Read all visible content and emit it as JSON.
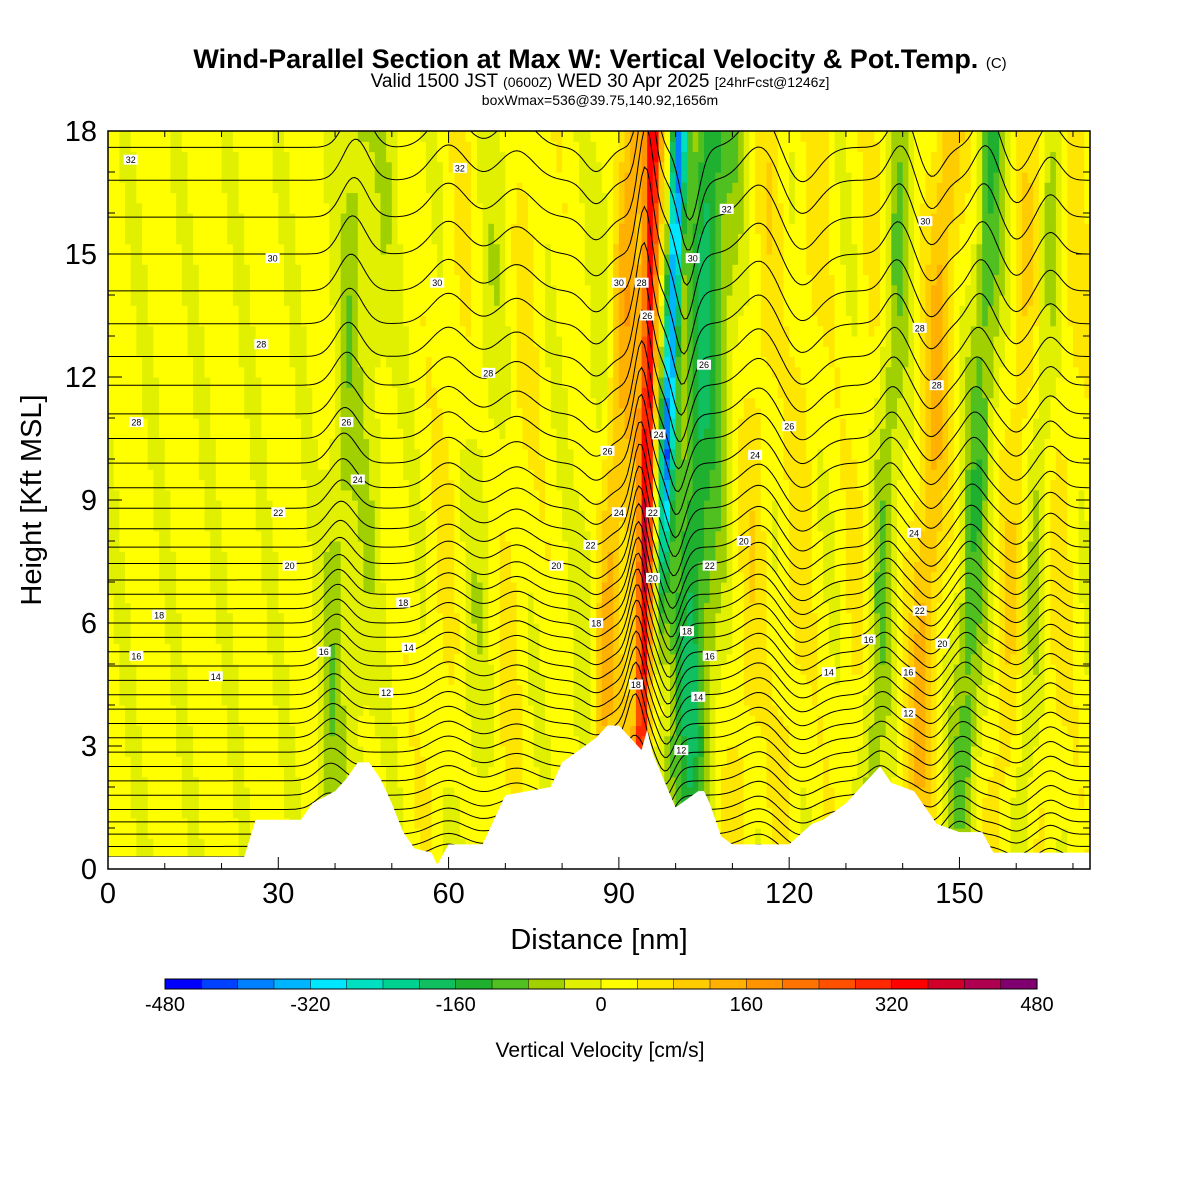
{
  "title": {
    "main": "Wind-Parallel Section at Max W: Vertical Velocity & Pot.Temp.",
    "copyright": "(C)",
    "valid_prefix": "Valid 1500 JST",
    "valid_utc": "(0600Z)",
    "valid_date": "WED 30 Apr 2025",
    "forecast": "[24hrFcst@1246z]",
    "box_info": "boxWmax=536@39.75,140.92,1656m"
  },
  "chart_data": {
    "type": "heatmap",
    "xlabel": "Distance [nm]",
    "ylabel": "Height [Kft MSL]",
    "xlim": [
      0,
      173
    ],
    "ylim": [
      0,
      18
    ],
    "x_ticks": [
      0,
      30,
      60,
      90,
      120,
      150
    ],
    "y_ticks": [
      0,
      3,
      6,
      9,
      12,
      15,
      18
    ],
    "colorbar": {
      "label": "Vertical Velocity [cm/s]",
      "bounds": [
        -480,
        480
      ],
      "step": 40,
      "tick_labels": [
        "-480",
        "-320",
        "-160",
        "0",
        "160",
        "320",
        "480"
      ],
      "tick_values": [
        -480,
        -320,
        -160,
        0,
        160,
        320,
        480
      ],
      "colors": [
        "#0000ff",
        "#0040ff",
        "#0080ff",
        "#00b4ff",
        "#00e6ff",
        "#00e0c0",
        "#00d090",
        "#10c060",
        "#20b030",
        "#50c020",
        "#a0d000",
        "#e0f000",
        "#ffff00",
        "#ffe600",
        "#ffcc00",
        "#ffb000",
        "#ff9400",
        "#ff7400",
        "#ff5000",
        "#ff2800",
        "#ff0000",
        "#d00028",
        "#b00050",
        "#800070"
      ]
    },
    "terrain_profile": {
      "x": [
        0,
        24,
        26,
        30,
        34,
        36,
        40,
        42,
        44,
        46,
        48,
        50,
        52,
        54,
        57,
        58,
        60,
        62,
        66,
        68,
        70,
        74,
        78,
        80,
        84,
        86,
        88,
        90,
        92,
        94,
        95,
        96,
        100,
        104,
        105,
        106,
        108,
        110,
        112,
        116,
        118,
        120,
        124,
        126,
        130,
        134,
        136,
        138,
        142,
        146,
        150,
        154,
        156,
        160,
        164,
        168,
        173
      ],
      "height_kft": [
        0.3,
        0.3,
        1.2,
        1.2,
        1.2,
        1.6,
        1.9,
        2.2,
        2.6,
        2.6,
        2.2,
        1.6,
        0.9,
        0.5,
        0.4,
        0.1,
        0.6,
        0.6,
        0.6,
        1.2,
        1.8,
        1.9,
        2.0,
        2.6,
        3.0,
        3.2,
        3.5,
        3.5,
        3.2,
        2.9,
        3.4,
        2.8,
        1.5,
        1.9,
        1.9,
        1.6,
        0.8,
        0.6,
        0.6,
        0.6,
        0.6,
        0.6,
        1.1,
        1.2,
        1.6,
        2.2,
        2.5,
        2.1,
        1.9,
        1.1,
        0.9,
        0.9,
        0.4,
        0.4,
        0.4,
        0.4,
        0.4
      ]
    },
    "contour_labels": [
      {
        "x": 4,
        "y": 17.3,
        "text": "32"
      },
      {
        "x": 62,
        "y": 17.1,
        "text": "32"
      },
      {
        "x": 109,
        "y": 16.1,
        "text": "32"
      },
      {
        "x": 29,
        "y": 14.9,
        "text": "30"
      },
      {
        "x": 58,
        "y": 14.3,
        "text": "30"
      },
      {
        "x": 90,
        "y": 14.3,
        "text": "30"
      },
      {
        "x": 103,
        "y": 14.9,
        "text": "30"
      },
      {
        "x": 144,
        "y": 15.8,
        "text": "30"
      },
      {
        "x": 94,
        "y": 14.3,
        "text": "28"
      },
      {
        "x": 95,
        "y": 13.5,
        "text": "26"
      },
      {
        "x": 27,
        "y": 12.8,
        "text": "28"
      },
      {
        "x": 67,
        "y": 12.1,
        "text": "28"
      },
      {
        "x": 105,
        "y": 12.3,
        "text": "26"
      },
      {
        "x": 143,
        "y": 13.2,
        "text": "28"
      },
      {
        "x": 146,
        "y": 11.8,
        "text": "28"
      },
      {
        "x": 5,
        "y": 10.9,
        "text": "28"
      },
      {
        "x": 42,
        "y": 10.9,
        "text": "26"
      },
      {
        "x": 88,
        "y": 10.2,
        "text": "26"
      },
      {
        "x": 97,
        "y": 10.6,
        "text": "24"
      },
      {
        "x": 120,
        "y": 10.8,
        "text": "26"
      },
      {
        "x": 44,
        "y": 9.5,
        "text": "24"
      },
      {
        "x": 114,
        "y": 10.1,
        "text": "24"
      },
      {
        "x": 30,
        "y": 8.7,
        "text": "22"
      },
      {
        "x": 90,
        "y": 8.7,
        "text": "24"
      },
      {
        "x": 96,
        "y": 8.7,
        "text": "22"
      },
      {
        "x": 85,
        "y": 7.9,
        "text": "22"
      },
      {
        "x": 112,
        "y": 8.0,
        "text": "20"
      },
      {
        "x": 142,
        "y": 8.2,
        "text": "24"
      },
      {
        "x": 32,
        "y": 7.4,
        "text": "20"
      },
      {
        "x": 79,
        "y": 7.4,
        "text": "20"
      },
      {
        "x": 106,
        "y": 7.4,
        "text": "22"
      },
      {
        "x": 96,
        "y": 7.1,
        "text": "20"
      },
      {
        "x": 9,
        "y": 6.2,
        "text": "18"
      },
      {
        "x": 52,
        "y": 6.5,
        "text": "18"
      },
      {
        "x": 86,
        "y": 6.0,
        "text": "18"
      },
      {
        "x": 102,
        "y": 5.8,
        "text": "18"
      },
      {
        "x": 143,
        "y": 6.3,
        "text": "22"
      },
      {
        "x": 5,
        "y": 5.2,
        "text": "16"
      },
      {
        "x": 38,
        "y": 5.3,
        "text": "16"
      },
      {
        "x": 53,
        "y": 5.4,
        "text": "14"
      },
      {
        "x": 106,
        "y": 5.2,
        "text": "16"
      },
      {
        "x": 134,
        "y": 5.6,
        "text": "16"
      },
      {
        "x": 147,
        "y": 5.5,
        "text": "20"
      },
      {
        "x": 19,
        "y": 4.7,
        "text": "14"
      },
      {
        "x": 127,
        "y": 4.8,
        "text": "14"
      },
      {
        "x": 141,
        "y": 4.8,
        "text": "16"
      },
      {
        "x": 93,
        "y": 4.5,
        "text": "18"
      },
      {
        "x": 104,
        "y": 4.2,
        "text": "14"
      },
      {
        "x": 49,
        "y": 4.3,
        "text": "12"
      },
      {
        "x": 141,
        "y": 3.8,
        "text": "12"
      },
      {
        "x": 101,
        "y": 2.9,
        "text": "12"
      }
    ]
  }
}
